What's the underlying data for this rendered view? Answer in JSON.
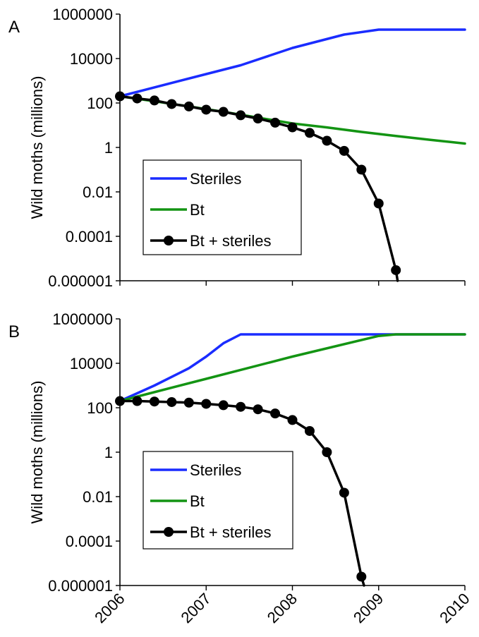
{
  "chart_data": [
    {
      "panel": "A",
      "type": "line",
      "ylabel": "Wild moths (millions)",
      "yscale": "log",
      "ylim": [
        1e-06,
        1000000
      ],
      "yticks": [
        "1000000",
        "10000",
        "100",
        "1",
        "0.01",
        "0.0001",
        "0.000001"
      ],
      "xlim": [
        2006,
        2010
      ],
      "legend": {
        "placement": "center-left",
        "entries": [
          "Steriles",
          "Bt",
          "Bt + steriles"
        ]
      },
      "series": [
        {
          "name": "Steriles",
          "color": "#1a2cff",
          "marker": "none",
          "x": [
            2006,
            2007,
            2007.4,
            2008,
            2008.6,
            2009,
            2010
          ],
          "y": [
            200,
            2000,
            5000,
            30000,
            120000,
            200000,
            200000
          ]
        },
        {
          "name": "Bt",
          "color": "#139413",
          "marker": "none",
          "x": [
            2006,
            2006.4,
            2006.8,
            2007.2,
            2007.6,
            2008,
            2008.4,
            2008.8,
            2009.2,
            2009.6,
            2010
          ],
          "y": [
            200,
            120,
            70,
            40,
            22,
            12,
            8,
            5,
            3.3,
            2.2,
            1.5
          ]
        },
        {
          "name": "Bt + steriles",
          "color": "#000000",
          "marker": "circle",
          "x": [
            2006,
            2006.2,
            2006.4,
            2006.6,
            2006.8,
            2007,
            2007.2,
            2007.4,
            2007.6,
            2007.8,
            2008,
            2008.2,
            2008.4,
            2008.6,
            2008.8,
            2009,
            2009.2,
            2009.22
          ],
          "y": [
            200,
            160,
            130,
            90,
            70,
            50,
            40,
            28,
            20,
            13,
            8,
            4.5,
            2,
            0.7,
            0.1,
            0.003,
            3e-06,
            1e-06
          ]
        }
      ]
    },
    {
      "panel": "B",
      "type": "line",
      "ylabel": "Wild moths (millions)",
      "yscale": "log",
      "ylim": [
        1e-06,
        1000000
      ],
      "yticks": [
        "1000000",
        "10000",
        "100",
        "1",
        "0.01",
        "0.0001",
        "0.000001"
      ],
      "xlim": [
        2006,
        2010
      ],
      "xticks": [
        "2006",
        "2007",
        "2008",
        "2009",
        "2010"
      ],
      "legend": {
        "placement": "bottom-left",
        "entries": [
          "Steriles",
          "Bt",
          "Bt + steriles"
        ]
      },
      "series": [
        {
          "name": "Steriles",
          "color": "#1a2cff",
          "marker": "none",
          "x": [
            2006,
            2006.4,
            2006.8,
            2007,
            2007.2,
            2007.4,
            2010
          ],
          "y": [
            200,
            1000,
            6000,
            20000,
            80000,
            200000,
            200000
          ]
        },
        {
          "name": "Bt",
          "color": "#139413",
          "marker": "none",
          "x": [
            2006,
            2007,
            2008,
            2009,
            2009.2,
            2010
          ],
          "y": [
            200,
            2000,
            20000,
            170000,
            200000,
            200000
          ]
        },
        {
          "name": "Bt + steriles",
          "color": "#000000",
          "marker": "circle",
          "x": [
            2006,
            2006.2,
            2006.4,
            2006.6,
            2006.8,
            2007,
            2007.2,
            2007.4,
            2007.6,
            2007.8,
            2008,
            2008.2,
            2008.4,
            2008.6,
            2008.8,
            2008.83
          ],
          "y": [
            200,
            200,
            190,
            180,
            170,
            150,
            130,
            110,
            85,
            55,
            28,
            9,
            1,
            0.015,
            2.5e-06,
            1e-06
          ]
        }
      ]
    }
  ]
}
